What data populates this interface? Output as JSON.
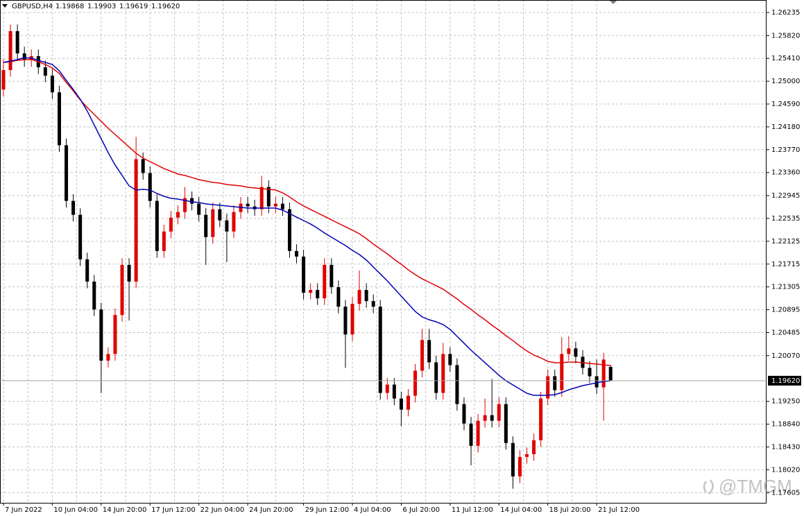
{
  "chart_data": {
    "type": "candlestick",
    "symbol": "GBPUSD,H4",
    "quote": [
      "1.19868",
      "1.19903",
      "1.19619",
      "1.19620"
    ],
    "categories": [
      "7 Jun 2022",
      null,
      null,
      null,
      null,
      null,
      null,
      "10 Jun 04:00",
      null,
      null,
      null,
      null,
      null,
      null,
      "14 Jun 20:00",
      null,
      null,
      null,
      null,
      null,
      null,
      "17 Jun 12:00",
      null,
      null,
      null,
      null,
      null,
      null,
      "22 Jun 04:00",
      null,
      null,
      null,
      null,
      null,
      null,
      "24 Jun 20:00",
      null,
      null,
      null,
      null,
      null,
      null,
      null,
      "29 Jun 12:00",
      null,
      null,
      null,
      null,
      null,
      null,
      "4 Jul 04:00",
      null,
      null,
      null,
      null,
      null,
      null,
      "6 Jul 20:00",
      null,
      null,
      null,
      null,
      null,
      null,
      "11 Jul 12:00",
      null,
      null,
      null,
      null,
      null,
      null,
      "14 Jul 04:00",
      null,
      null,
      null,
      null,
      null,
      null,
      "18 Jul 20:00",
      null,
      null,
      null,
      null,
      null,
      null,
      "21 Jul 12:00",
      null,
      null
    ],
    "open": [
      1.2485,
      1.252,
      1.259,
      1.255,
      1.2538,
      1.2545,
      1.2525,
      1.251,
      1.248,
      1.2385,
      1.2285,
      1.226,
      1.218,
      1.214,
      1.209,
      1.1998,
      1.201,
      1.208,
      1.217,
      1.214,
      1.236,
      1.2335,
      1.2285,
      1.2195,
      1.223,
      1.2255,
      1.2265,
      1.229,
      1.228,
      1.226,
      1.222,
      1.227,
      1.225,
      1.223,
      1.2265,
      1.228,
      1.2275,
      1.227,
      1.231,
      1.2275,
      1.228,
      1.227,
      1.2195,
      1.2185,
      1.212,
      1.2125,
      1.211,
      1.217,
      1.213,
      1.2095,
      1.2045,
      1.21,
      1.2125,
      1.2105,
      1.2095,
      1.194,
      1.1955,
      1.193,
      1.191,
      1.1935,
      1.198,
      1.2035,
      1.1995,
      1.194,
      1.201,
      1.199,
      1.192,
      1.1885,
      1.1845,
      1.189,
      1.19,
      1.189,
      1.192,
      1.185,
      1.179,
      1.1825,
      1.183,
      1.1855,
      1.193,
      1.197,
      1.1945,
      1.201,
      1.202,
      1.2005,
      1.1985,
      1.197,
      1.195,
      1.19868
    ],
    "high": [
      1.254,
      1.2602,
      1.2602,
      1.2562,
      1.2557,
      1.2557,
      1.2537,
      1.2522,
      1.2492,
      1.2397,
      1.2297,
      1.2272,
      1.2192,
      1.2152,
      1.2102,
      1.2022,
      1.2092,
      1.2182,
      1.2182,
      1.24,
      1.2372,
      1.2347,
      1.2297,
      1.2242,
      1.2267,
      1.2277,
      1.231,
      1.2302,
      1.2292,
      1.2272,
      1.2282,
      1.2282,
      1.2262,
      1.2277,
      1.2292,
      1.2292,
      1.2287,
      1.233,
      1.2322,
      1.2292,
      1.2292,
      1.2282,
      1.2207,
      1.2197,
      1.2137,
      1.2137,
      1.2182,
      1.2182,
      1.2142,
      1.2107,
      1.2112,
      1.216,
      1.2137,
      1.2117,
      1.2107,
      1.1967,
      1.1967,
      1.1942,
      1.1947,
      1.1992,
      1.2055,
      1.2055,
      1.2007,
      1.203,
      1.2022,
      1.2002,
      1.1932,
      1.1897,
      1.1902,
      1.193,
      1.1965,
      1.1932,
      1.1932,
      1.1862,
      1.1837,
      1.1842,
      1.1867,
      1.1942,
      1.1982,
      1.1982,
      1.204,
      1.2042,
      1.2032,
      1.2017,
      1.1997,
      1.2,
      1.2012,
      1.19903
    ],
    "low": [
      1.2473,
      1.2508,
      1.2538,
      1.2526,
      1.2526,
      1.2513,
      1.2498,
      1.2468,
      1.2373,
      1.2273,
      1.2248,
      1.2168,
      1.2128,
      1.2078,
      1.194,
      1.1986,
      1.1998,
      1.2068,
      1.207,
      1.2128,
      1.2323,
      1.2273,
      1.2183,
      1.2183,
      1.2218,
      1.2243,
      1.2253,
      1.2268,
      1.2248,
      1.217,
      1.2208,
      1.2238,
      1.2175,
      1.2218,
      1.2253,
      1.2263,
      1.2258,
      1.2258,
      1.2263,
      1.2263,
      1.2258,
      1.2183,
      1.2173,
      1.2108,
      1.2108,
      1.2098,
      1.2098,
      1.2118,
      1.2083,
      1.1985,
      1.2033,
      1.2088,
      1.2093,
      1.2083,
      1.1928,
      1.1928,
      1.1918,
      1.188,
      1.1898,
      1.1923,
      1.1968,
      1.1983,
      1.1928,
      1.1928,
      1.1978,
      1.1908,
      1.1873,
      1.181,
      1.1833,
      1.1878,
      1.1878,
      1.1878,
      1.1838,
      1.1768,
      1.1778,
      1.1813,
      1.1818,
      1.1843,
      1.1918,
      1.1933,
      1.1933,
      1.1998,
      1.1993,
      1.1973,
      1.1958,
      1.1938,
      1.189,
      1.19619
    ],
    "close": [
      1.252,
      1.259,
      1.255,
      1.2538,
      1.2545,
      1.2525,
      1.251,
      1.248,
      1.2385,
      1.2285,
      1.226,
      1.218,
      1.214,
      1.209,
      1.1998,
      1.201,
      1.208,
      1.217,
      1.214,
      1.236,
      1.2335,
      1.2285,
      1.2195,
      1.223,
      1.2255,
      1.2265,
      1.229,
      1.228,
      1.226,
      1.222,
      1.227,
      1.225,
      1.223,
      1.2265,
      1.228,
      1.2275,
      1.227,
      1.231,
      1.2275,
      1.228,
      1.227,
      1.2195,
      1.2185,
      1.212,
      1.2125,
      1.211,
      1.217,
      1.213,
      1.2095,
      1.2045,
      1.21,
      1.2125,
      1.2105,
      1.2095,
      1.194,
      1.1955,
      1.193,
      1.191,
      1.1935,
      1.198,
      1.2035,
      1.1995,
      1.194,
      1.201,
      1.199,
      1.192,
      1.1885,
      1.1845,
      1.189,
      1.19,
      1.189,
      1.192,
      1.185,
      1.179,
      1.1825,
      1.183,
      1.1855,
      1.193,
      1.197,
      1.1945,
      1.201,
      1.202,
      1.2005,
      1.1985,
      1.197,
      1.195,
      1.2,
      1.1962
    ],
    "bull_color": "#e00000",
    "bear_color": "#000000",
    "moving_averages": [
      {
        "color": "#e00000",
        "values": [
          1.25338,
          1.2535,
          1.25375,
          1.25388,
          1.25388,
          1.2535,
          1.253,
          1.25238,
          1.25139,
          1.24977,
          1.24827,
          1.24665,
          1.24528,
          1.24403,
          1.24279,
          1.24154,
          1.24042,
          1.2393,
          1.23818,
          1.23706,
          1.23618,
          1.23556,
          1.23494,
          1.23431,
          1.23382,
          1.23332,
          1.23307,
          1.2327,
          1.23232,
          1.23207,
          1.23182,
          1.2317,
          1.23145,
          1.23132,
          1.2312,
          1.23095,
          1.23083,
          1.2307,
          1.23058,
          1.23045,
          1.22995,
          1.22921,
          1.22833,
          1.22759,
          1.22696,
          1.22634,
          1.22572,
          1.22509,
          1.22447,
          1.22385,
          1.22323,
          1.2226,
          1.22173,
          1.22073,
          1.21986,
          1.21899,
          1.21799,
          1.21712,
          1.21612,
          1.21525,
          1.2145,
          1.21388,
          1.21326,
          1.21263,
          1.21176,
          1.21089,
          1.20989,
          1.20902,
          1.20802,
          1.20715,
          1.20616,
          1.20528,
          1.20429,
          1.20341,
          1.20242,
          1.20155,
          1.2008,
          1.2003,
          1.19968,
          1.19943,
          1.19943,
          1.19955,
          1.19955,
          1.19943,
          1.1993,
          1.19918,
          1.19905,
          1.19893
        ]
      },
      {
        "color": "#0000b4",
        "values": [
          1.25338,
          1.25363,
          1.25388,
          1.25425,
          1.25413,
          1.25375,
          1.25338,
          1.253,
          1.25188,
          1.25014,
          1.24852,
          1.24677,
          1.24466,
          1.24216,
          1.23967,
          1.23718,
          1.23494,
          1.23307,
          1.2312,
          1.23045,
          1.23058,
          1.23045,
          1.22983,
          1.22933,
          1.22896,
          1.22883,
          1.22858,
          1.22833,
          1.22821,
          1.22796,
          1.22784,
          1.22771,
          1.22759,
          1.22746,
          1.22734,
          1.22721,
          1.22721,
          1.22721,
          1.22721,
          1.22721,
          1.22684,
          1.22622,
          1.22559,
          1.22497,
          1.22435,
          1.2236,
          1.22273,
          1.22198,
          1.22123,
          1.22048,
          1.21961,
          1.21886,
          1.21787,
          1.21662,
          1.21538,
          1.21413,
          1.21276,
          1.21139,
          1.21002,
          1.20865,
          1.20765,
          1.20715,
          1.20678,
          1.20628,
          1.20541,
          1.20416,
          1.20292,
          1.20167,
          1.20055,
          1.19943,
          1.19831,
          1.19718,
          1.19619,
          1.19544,
          1.19469,
          1.19394,
          1.19357,
          1.19357,
          1.19357,
          1.1937,
          1.19407,
          1.19457,
          1.19494,
          1.19532,
          1.19556,
          1.19581,
          1.19606,
          1.19619
        ]
      }
    ],
    "ylim": [
      1.17426,
      1.26459
    ],
    "yticks": [
      {
        "value": 1.26235,
        "label": "1.26235"
      },
      {
        "value": 1.2582,
        "label": "1.25820"
      },
      {
        "value": 1.2541,
        "label": "1.25410"
      },
      {
        "value": 1.25,
        "label": "1.25000"
      },
      {
        "value": 1.2459,
        "label": "1.24590"
      },
      {
        "value": 1.2418,
        "label": "1.24180"
      },
      {
        "value": 1.2377,
        "label": "1.23770"
      },
      {
        "value": 1.2336,
        "label": "1.23360"
      },
      {
        "value": 1.22945,
        "label": "1.22945"
      },
      {
        "value": 1.22535,
        "label": "1.22535"
      },
      {
        "value": 1.22125,
        "label": "1.22125"
      },
      {
        "value": 1.21715,
        "label": "1.21715"
      },
      {
        "value": 1.21305,
        "label": "1.21305"
      },
      {
        "value": 1.20895,
        "label": "1.20895"
      },
      {
        "value": 1.20485,
        "label": "1.20485"
      },
      {
        "value": 1.2007,
        "label": "1.20070"
      },
      {
        "value": 1.1925,
        "label": "1.19250"
      },
      {
        "value": 1.1884,
        "label": "1.18840"
      },
      {
        "value": 1.1843,
        "label": "1.18430"
      },
      {
        "value": 1.1802,
        "label": "1.18020"
      },
      {
        "value": 1.17605,
        "label": "1.17605"
      }
    ],
    "current_price": {
      "value": 1.1962,
      "label": "1.19620"
    },
    "grid": true,
    "watermark": "@TMGM"
  }
}
